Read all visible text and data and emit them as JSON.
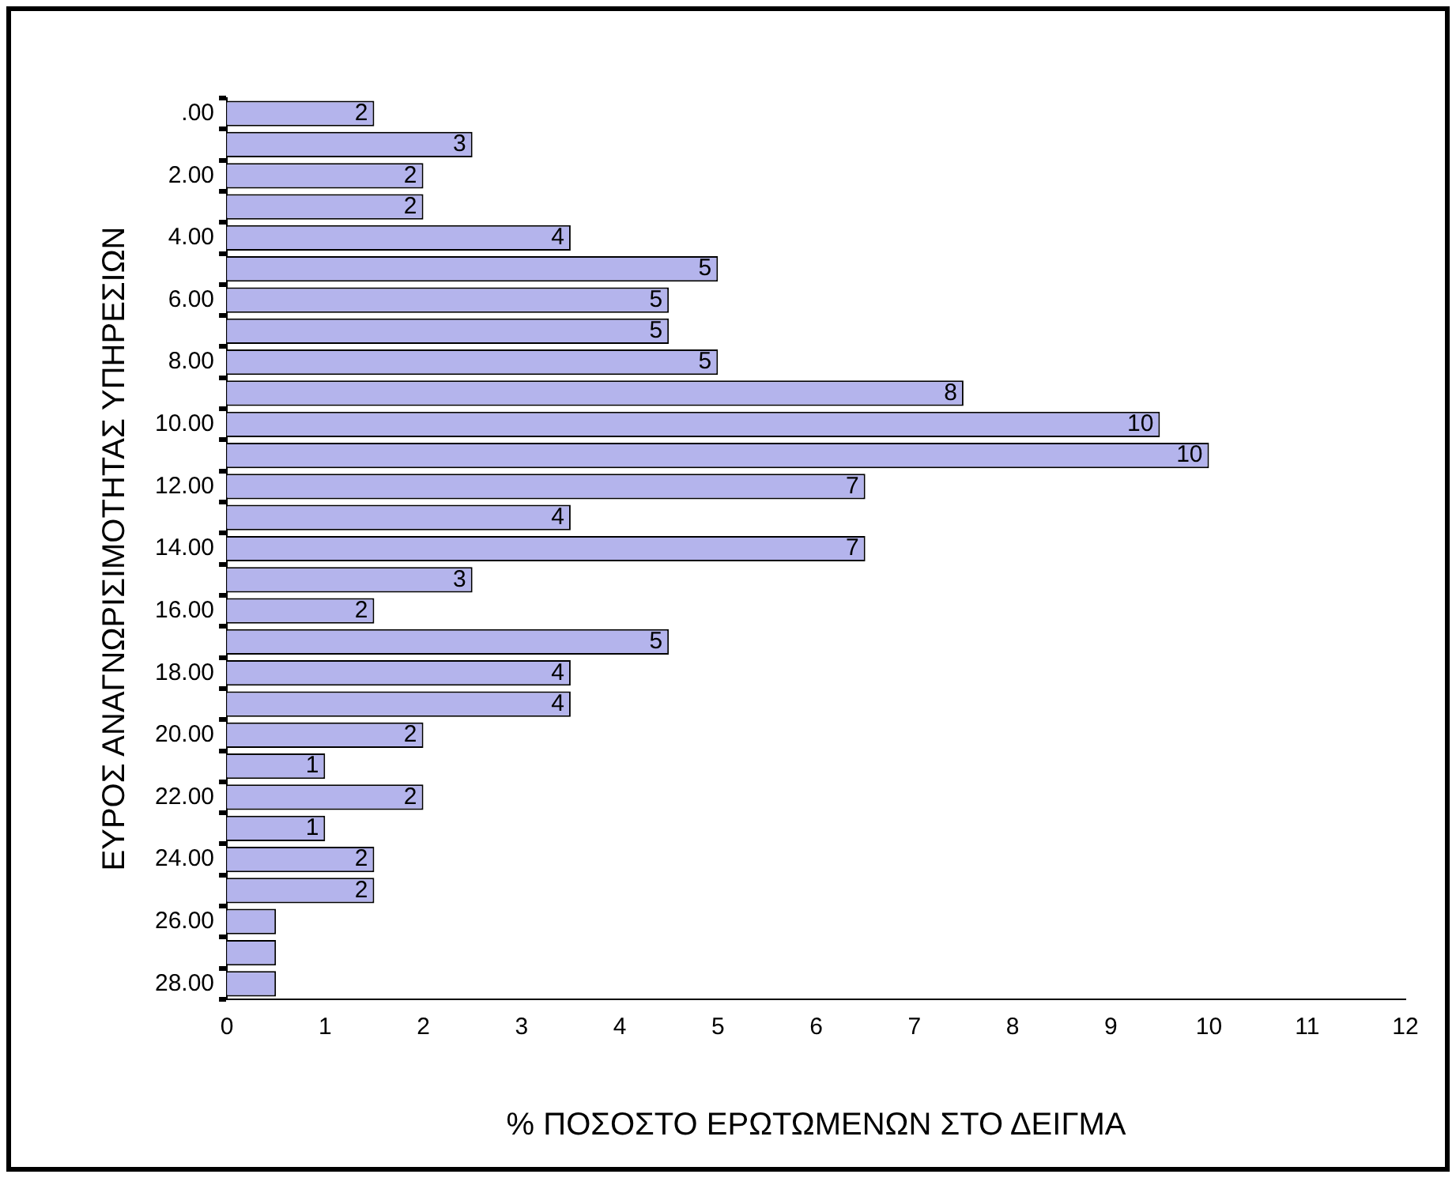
{
  "chart_data": {
    "type": "bar",
    "orientation": "horizontal",
    "xlabel": "% ΠΟΣΟΣΤΟ ΕΡΩΤΩΜΕΝΩΝ ΣΤΟ ΔΕΙΓΜΑ",
    "ylabel": "ΕΥΡΟΣ ΑΝΑΓΝΩΡΙΣΙΜΟΤΗΤΑΣ ΥΠΗΡΕΣΙΩΝ",
    "categories": [
      ".00",
      null,
      "2.00",
      null,
      "4.00",
      null,
      "6.00",
      null,
      "8.00",
      null,
      "10.00",
      null,
      "12.00",
      null,
      "14.00",
      null,
      "16.00",
      null,
      "18.00",
      null,
      "20.00",
      null,
      "22.00",
      null,
      "24.00",
      null,
      "26.00",
      null,
      "28.00"
    ],
    "values": [
      1.5,
      2.5,
      2.0,
      2.0,
      3.5,
      5.0,
      4.5,
      4.5,
      5.0,
      7.5,
      9.5,
      10.0,
      6.5,
      3.5,
      6.5,
      2.5,
      1.5,
      4.5,
      3.5,
      3.5,
      2.0,
      1.0,
      2.0,
      1.0,
      1.5,
      1.5,
      0.5,
      0.5,
      0.5
    ],
    "value_labels": [
      "2",
      "3",
      "2",
      "2",
      "4",
      "5",
      "5",
      "5",
      "5",
      "8",
      "10",
      "10",
      "7",
      "4",
      "7",
      "3",
      "2",
      "5",
      "4",
      "4",
      "2",
      "1",
      "2",
      "1",
      "2",
      "2",
      null,
      null,
      null
    ],
    "color": "#b4b4ec",
    "xlim": [
      0,
      12
    ],
    "xticks": [
      0,
      1,
      2,
      3,
      4,
      5,
      6,
      7,
      8,
      9,
      10,
      11,
      12
    ],
    "grid": false,
    "legend": false
  }
}
